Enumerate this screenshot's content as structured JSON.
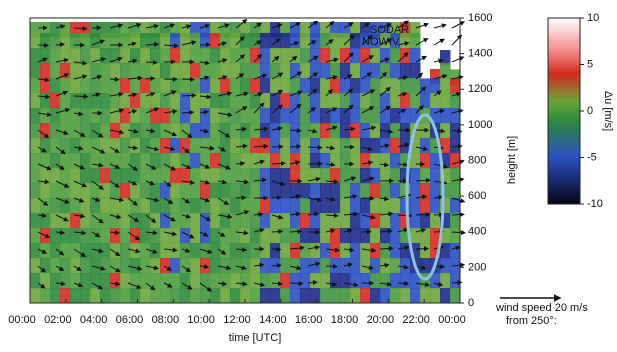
{
  "chart_data": {
    "type": "heatmap",
    "annotations": [
      "SODAR",
      "NOWIV"
    ],
    "xlabel": "time [UTC]",
    "ylabel": "height [m]",
    "xlim": [
      0,
      24
    ],
    "xticks": [
      {
        "value": 0,
        "label": "00:00"
      },
      {
        "value": 2,
        "label": "02:00"
      },
      {
        "value": 4,
        "label": "04:00"
      },
      {
        "value": 6,
        "label": "06:00"
      },
      {
        "value": 8,
        "label": "08:00"
      },
      {
        "value": 10,
        "label": "10:00"
      },
      {
        "value": 12,
        "label": "12:00"
      },
      {
        "value": 14,
        "label": "14:00"
      },
      {
        "value": 16,
        "label": "16:00"
      },
      {
        "value": 18,
        "label": "18:00"
      },
      {
        "value": 20,
        "label": "20:00"
      },
      {
        "value": 22,
        "label": "22:00"
      },
      {
        "value": 24,
        "label": "00:00"
      }
    ],
    "ylim": [
      0,
      1600
    ],
    "yticks": [
      0,
      200,
      400,
      600,
      800,
      1000,
      1200,
      1400,
      1600
    ],
    "clim": [
      -10,
      10
    ],
    "cticks": [
      -10,
      -5,
      0,
      5,
      10
    ],
    "clabel": "Δu [m/s]",
    "legend": [
      "wind speed 20 m/s",
      "from 250°:"
    ]
  }
}
